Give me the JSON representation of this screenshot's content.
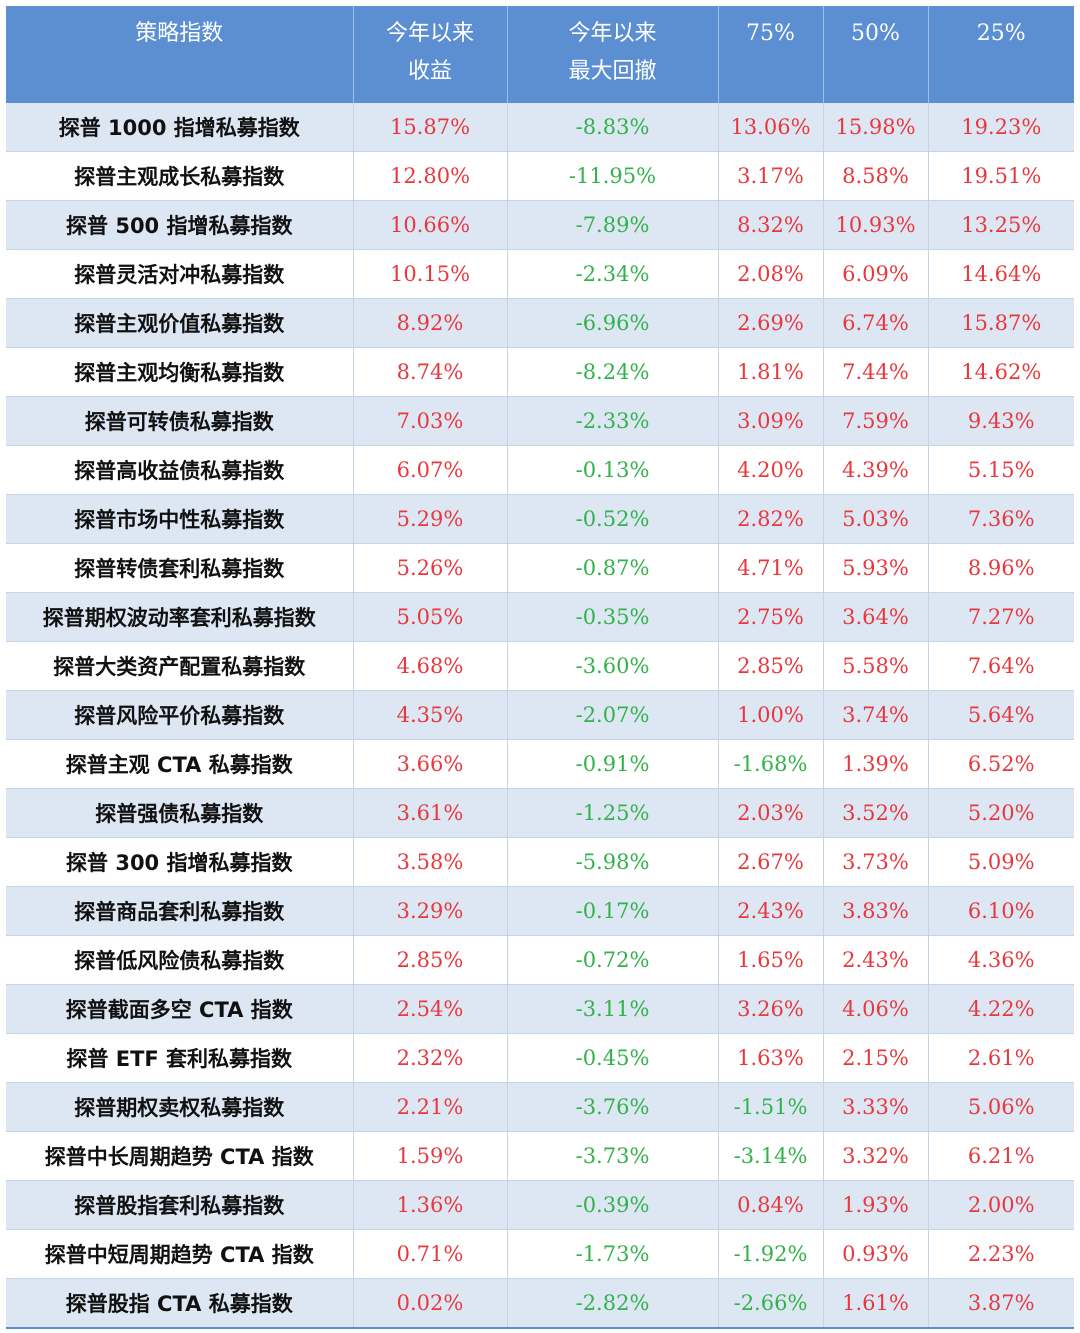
{
  "table": {
    "headers": [
      {
        "line1": "策略指数",
        "line2": ""
      },
      {
        "line1": "今年以来",
        "line2": "收益"
      },
      {
        "line1": "今年以来",
        "line2": "最大回撤"
      },
      {
        "line1": "75%",
        "line2": ""
      },
      {
        "line1": "50%",
        "line2": ""
      },
      {
        "line1": "25%",
        "line2": ""
      }
    ],
    "rows": [
      [
        "探普 1000 指增私募指数",
        "15.87%",
        "-8.83%",
        "13.06%",
        "15.98%",
        "19.23%"
      ],
      [
        "探普主观成长私募指数",
        "12.80%",
        "-11.95%",
        "3.17%",
        "8.58%",
        "19.51%"
      ],
      [
        "探普 500 指增私募指数",
        "10.66%",
        "-7.89%",
        "8.32%",
        "10.93%",
        "13.25%"
      ],
      [
        "探普灵活对冲私募指数",
        "10.15%",
        "-2.34%",
        "2.08%",
        "6.09%",
        "14.64%"
      ],
      [
        "探普主观价值私募指数",
        "8.92%",
        "-6.96%",
        "2.69%",
        "6.74%",
        "15.87%"
      ],
      [
        "探普主观均衡私募指数",
        "8.74%",
        "-8.24%",
        "1.81%",
        "7.44%",
        "14.62%"
      ],
      [
        "探普可转债私募指数",
        "7.03%",
        "-2.33%",
        "3.09%",
        "7.59%",
        "9.43%"
      ],
      [
        "探普高收益债私募指数",
        "6.07%",
        "-0.13%",
        "4.20%",
        "4.39%",
        "5.15%"
      ],
      [
        "探普市场中性私募指数",
        "5.29%",
        "-0.52%",
        "2.82%",
        "5.03%",
        "7.36%"
      ],
      [
        "探普转债套利私募指数",
        "5.26%",
        "-0.87%",
        "4.71%",
        "5.93%",
        "8.96%"
      ],
      [
        "探普期权波动率套利私募指数",
        "5.05%",
        "-0.35%",
        "2.75%",
        "3.64%",
        "7.27%"
      ],
      [
        "探普大类资产配置私募指数",
        "4.68%",
        "-3.60%",
        "2.85%",
        "5.58%",
        "7.64%"
      ],
      [
        "探普风险平价私募指数",
        "4.35%",
        "-2.07%",
        "1.00%",
        "3.74%",
        "5.64%"
      ],
      [
        "探普主观 CTA 私募指数",
        "3.66%",
        "-0.91%",
        "-1.68%",
        "1.39%",
        "6.52%"
      ],
      [
        "探普强债私募指数",
        "3.61%",
        "-1.25%",
        "2.03%",
        "3.52%",
        "5.20%"
      ],
      [
        "探普 300 指增私募指数",
        "3.58%",
        "-5.98%",
        "2.67%",
        "3.73%",
        "5.09%"
      ],
      [
        "探普商品套利私募指数",
        "3.29%",
        "-0.17%",
        "2.43%",
        "3.83%",
        "6.10%"
      ],
      [
        "探普低风险债私募指数",
        "2.85%",
        "-0.72%",
        "1.65%",
        "2.43%",
        "4.36%"
      ],
      [
        "探普截面多空 CTA 指数",
        "2.54%",
        "-3.11%",
        "3.26%",
        "4.06%",
        "4.22%"
      ],
      [
        "探普 ETF 套利私募指数",
        "2.32%",
        "-0.45%",
        "1.63%",
        "2.15%",
        "2.61%"
      ],
      [
        "探普期权卖权私募指数",
        "2.21%",
        "-3.76%",
        "-1.51%",
        "3.33%",
        "5.06%"
      ],
      [
        "探普中长周期趋势 CTA 指数",
        "1.59%",
        "-3.73%",
        "-3.14%",
        "3.32%",
        "6.21%"
      ],
      [
        "探普股指套利私募指数",
        "1.36%",
        "-0.39%",
        "0.84%",
        "1.93%",
        "2.00%"
      ],
      [
        "探普中短周期趋势 CTA 指数",
        "0.71%",
        "-1.73%",
        "-1.92%",
        "0.93%",
        "2.23%"
      ],
      [
        "探普股指 CTA 私募指数",
        "0.02%",
        "-2.82%",
        "-2.66%",
        "1.61%",
        "3.87%"
      ]
    ],
    "colors": {
      "header_bg": "#5b8fd2",
      "stripe_bg": "#dde7f4",
      "positive": "#e8383d",
      "negative": "#32b24a"
    }
  }
}
